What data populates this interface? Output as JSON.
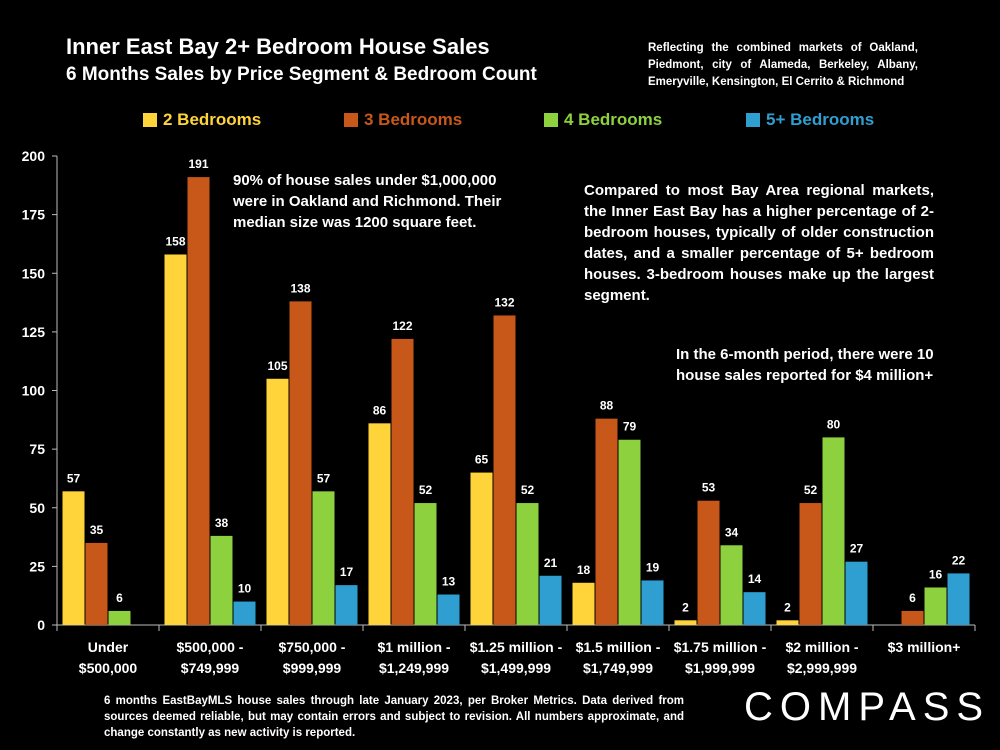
{
  "header": {
    "title": "Inner East Bay 2+ Bedroom House Sales",
    "subtitle": "6 Months Sales by Price Segment & Bedroom Count",
    "note": "Reflecting the combined markets of Oakland, Piedmont, city of Alameda, Berkeley, Albany, Emeryville, Kensington, El Cerrito & Richmond"
  },
  "annotations": {
    "oakland_richmond": "90% of house sales under $1,000,000 were in Oakland and Richmond. Their median size was 1200 square feet.",
    "comparison": "Compared to most Bay Area regional markets, the Inner East Bay has a higher percentage of 2-bedroom houses, typically of older construction dates, and a smaller percentage of 5+ bedroom houses. 3-bedroom houses make up the largest segment.",
    "four_million": "In the 6-month period, there were 10 house sales reported for $4 million+"
  },
  "footer": {
    "footnote": "6 months EastBayMLS house sales through late January 2023, per Broker Metrics. Data derived from sources deemed reliable, but may contain errors and subject to revision. All numbers approximate, and change constantly as new activity is reported.",
    "logo": "COMPASS"
  },
  "chart_data": {
    "type": "bar",
    "title": "Inner East Bay 2+ Bedroom House Sales",
    "xlabel": "",
    "ylabel": "",
    "ylim": [
      0,
      200
    ],
    "yticks": [
      0,
      25,
      50,
      75,
      100,
      125,
      150,
      175,
      200
    ],
    "grid": false,
    "legend_position": "top",
    "categories": [
      [
        "Under",
        "$500,000"
      ],
      [
        "$500,000 -",
        "$749,999"
      ],
      [
        "$750,000 -",
        "$999,999"
      ],
      [
        "$1 million -",
        "$1,249,999"
      ],
      [
        "$1.25 million -",
        "$1,499,999"
      ],
      [
        "$1.5 million -",
        "$1,749,999"
      ],
      [
        "$1.75 million -",
        "$1,999,999"
      ],
      [
        "$2 million -",
        "$2,999,999"
      ],
      [
        "$3 million+"
      ]
    ],
    "series": [
      {
        "name": "2 Bedrooms",
        "color": "#FFD43B",
        "values": [
          57,
          158,
          105,
          86,
          65,
          18,
          2,
          2,
          null
        ]
      },
      {
        "name": "3 Bedrooms",
        "color": "#C8581A",
        "values": [
          35,
          191,
          138,
          122,
          132,
          88,
          53,
          52,
          6
        ]
      },
      {
        "name": "4 Bedrooms",
        "color": "#8ED13F",
        "values": [
          6,
          38,
          57,
          52,
          52,
          79,
          34,
          80,
          16
        ]
      },
      {
        "name": "5+ Bedrooms",
        "color": "#2E9FD0",
        "values": [
          null,
          10,
          17,
          13,
          21,
          19,
          14,
          27,
          22
        ]
      }
    ]
  }
}
